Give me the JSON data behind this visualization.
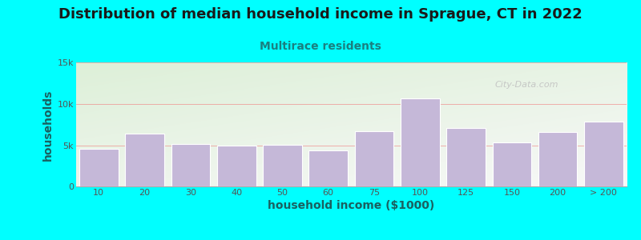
{
  "title": "Distribution of median household income in Sprague, CT in 2022",
  "subtitle": "Multirace residents",
  "xlabel": "household income ($1000)",
  "ylabel": "households",
  "background_color": "#00FFFF",
  "plot_bg_gradient_top_left": "#ddf0d8",
  "plot_bg_gradient_bottom_right": "#f8f8f8",
  "bar_color": "#c5b8d8",
  "bar_edge_color": "#ffffff",
  "title_color": "#1a1a1a",
  "subtitle_color": "#1a8080",
  "axis_label_color": "#1a6060",
  "tick_color": "#555555",
  "watermark": "City-Data.com",
  "categories": [
    "10",
    "20",
    "30",
    "40",
    "50",
    "60",
    "75",
    "100",
    "125",
    "150",
    "200",
    "> 200"
  ],
  "values": [
    4600,
    6400,
    5200,
    5000,
    5100,
    4400,
    6700,
    10700,
    7100,
    5400,
    6600,
    7900
  ],
  "ylim": [
    0,
    15000
  ],
  "yticks": [
    0,
    5000,
    10000,
    15000
  ],
  "ytick_labels": [
    "0",
    "5k",
    "10k",
    "15k"
  ],
  "title_fontsize": 13,
  "subtitle_fontsize": 10,
  "axis_label_fontsize": 10,
  "tick_fontsize": 8,
  "watermark_color": "#c0c0c0",
  "grid_color": "#f08080",
  "grid_linewidth": 0.6
}
